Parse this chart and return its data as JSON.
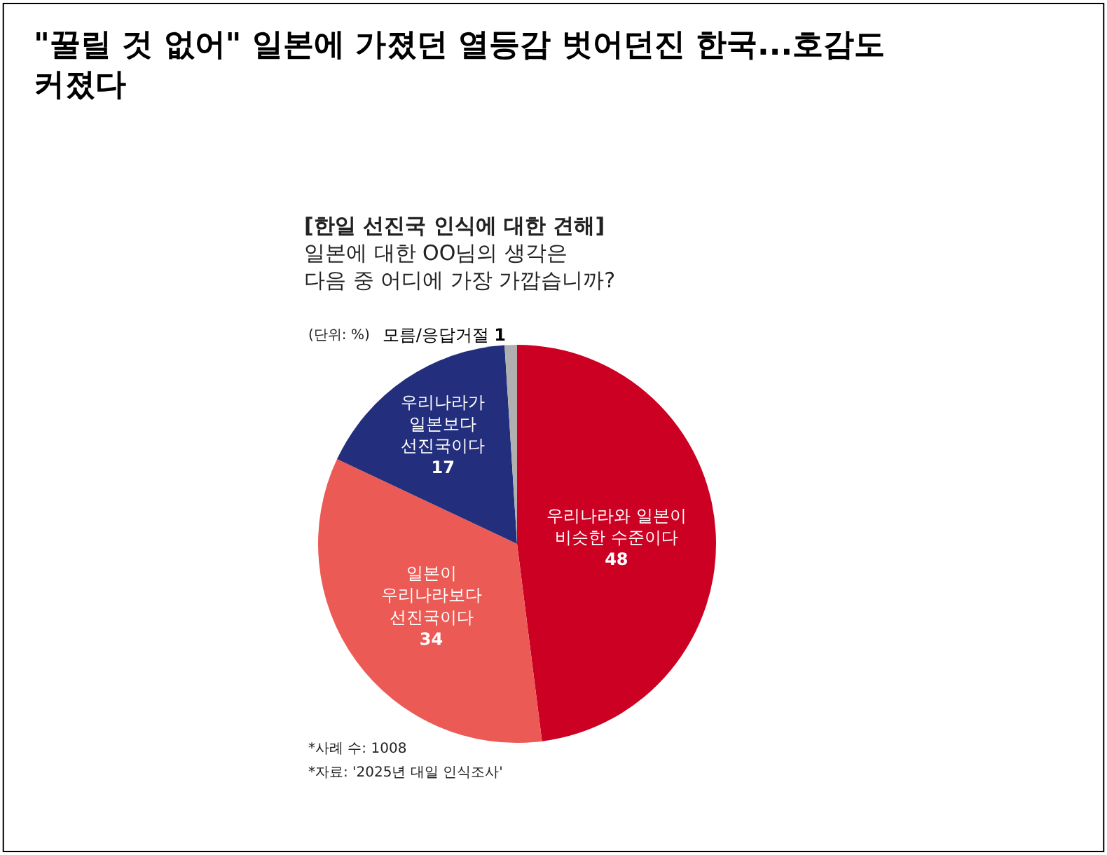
{
  "chart_data": {
    "type": "pie",
    "title": "\"꿀릴 것 없어\" 일본에 가졌던 열등감 벗어던진 한국...호감도\n커졌다",
    "subtitle": "[한일 선진국 인식에 대한 견해]\n일본에 대한 OO님의 생각은\n다음 중 어디에 가장 가깝습니까?",
    "categories": [
      "우리나라와 일본이\n비슷한 수준이다",
      "일본이\n우리나라보다\n선진국이다",
      "우리나라가\n일본보다\n선진국이다",
      "모름/응답거절"
    ],
    "values": [
      48,
      34,
      17,
      1
    ],
    "colors": [
      "#cc0022",
      "#ec5a55",
      "#232f7c",
      "#b0b0b0"
    ],
    "data_labels": true,
    "legend": false,
    "annotations": [
      "(단위: %)",
      "*사례 수: 1008",
      "*자료: '2025년 대일 인식조사'"
    ]
  }
}
